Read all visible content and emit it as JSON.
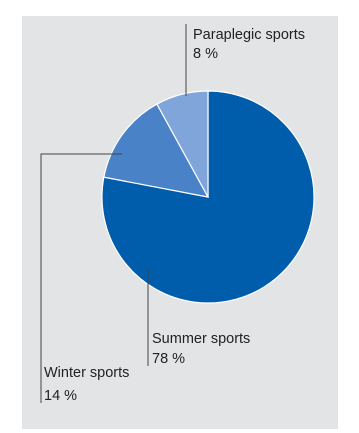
{
  "chart_data": {
    "type": "pie",
    "title": "",
    "slices": [
      {
        "label": "Summer sports",
        "percent_text": "78 %",
        "value": 78,
        "color": "#005dab"
      },
      {
        "label": "Winter sports",
        "percent_text": "14 %",
        "value": 14,
        "color": "#4a82c8"
      },
      {
        "label": "Paraplegic sports",
        "percent_text": "8 %",
        "value": 8,
        "color": "#7fa5da"
      }
    ],
    "start": "12 o'clock, clockwise",
    "legend": "none (direct labels with leader lines)"
  }
}
